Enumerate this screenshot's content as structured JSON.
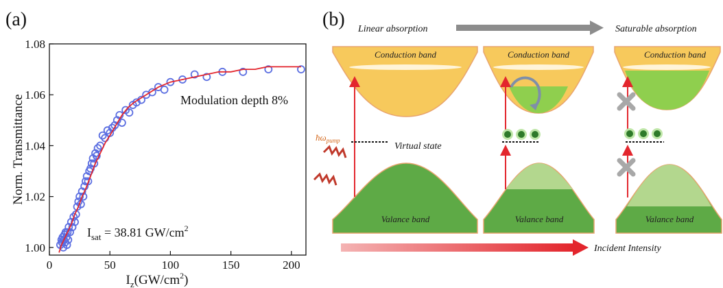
{
  "panel_a": {
    "label": "(a)",
    "ylabel": "Norm. Transmittance",
    "xlabel_main": "I",
    "xlabel_sub": "z",
    "xlabel_rest": "(GW/cm",
    "xlabel_sup": "2",
    "xlabel_end": ")",
    "annotation_modulation": "Modulation depth 8%",
    "isat_main": "I",
    "isat_sub": "sat",
    "isat_rest": " = 38.81 GW/cm",
    "isat_sup": "2"
  },
  "chart_data": {
    "type": "scatter",
    "x_ticks": [
      "0",
      "50",
      "100",
      "150",
      "200"
    ],
    "y_ticks": [
      "1.00",
      "1.02",
      "1.04",
      "1.06",
      "1.08"
    ],
    "xlim": [
      0,
      212
    ],
    "ylim": [
      0.997,
      1.08
    ],
    "colors": {
      "points": "#5b6ee1",
      "fit": "#e3262d"
    },
    "series": [
      {
        "kind": "measured",
        "x": [
          9,
          10,
          10.5,
          11,
          11.5,
          12,
          12.5,
          13,
          13.5,
          14,
          14.5,
          15,
          15.5,
          16,
          17,
          18,
          19,
          20,
          21,
          22,
          23,
          24,
          25,
          26,
          27,
          28,
          29,
          30,
          31,
          32,
          33,
          34,
          35,
          36,
          37,
          38,
          39,
          40,
          42,
          44,
          46,
          48,
          50,
          52,
          54,
          56,
          58,
          60,
          63,
          66,
          69,
          72,
          76,
          80,
          85,
          90,
          95,
          100,
          110,
          120,
          130,
          143,
          160,
          181,
          208
        ],
        "y": [
          1.001,
          1.003,
          1.002,
          1.004,
          1.0,
          1.003,
          1.005,
          1.002,
          1.006,
          1.004,
          1.001,
          1.006,
          1.003,
          1.008,
          1.006,
          1.01,
          1.008,
          1.012,
          1.01,
          1.013,
          1.016,
          1.018,
          1.02,
          1.017,
          1.022,
          1.02,
          1.024,
          1.026,
          1.028,
          1.026,
          1.03,
          1.031,
          1.033,
          1.035,
          1.033,
          1.037,
          1.036,
          1.039,
          1.04,
          1.044,
          1.043,
          1.046,
          1.045,
          1.047,
          1.048,
          1.05,
          1.052,
          1.049,
          1.054,
          1.053,
          1.056,
          1.057,
          1.058,
          1.06,
          1.061,
          1.063,
          1.062,
          1.065,
          1.066,
          1.068,
          1.067,
          1.069,
          1.069,
          1.07,
          1.07
        ]
      },
      {
        "kind": "fit",
        "x": [
          8,
          10,
          12,
          15,
          18,
          21,
          24,
          27,
          30,
          34,
          38,
          42,
          46,
          50,
          55,
          60,
          65,
          70,
          80,
          90,
          100,
          110,
          120,
          130,
          140,
          150,
          160,
          170,
          180,
          190,
          200,
          208
        ],
        "y": [
          0.998,
          1.001,
          1.003,
          1.006,
          1.009,
          1.013,
          1.016,
          1.02,
          1.023,
          1.028,
          1.033,
          1.037,
          1.041,
          1.044,
          1.048,
          1.052,
          1.055,
          1.057,
          1.06,
          1.063,
          1.065,
          1.066,
          1.067,
          1.068,
          1.069,
          1.069,
          1.07,
          1.07,
          1.071,
          1.071,
          1.071,
          1.071
        ]
      }
    ]
  },
  "panel_b": {
    "label": "(b)",
    "linear_absorption": "Linear absorption",
    "saturable_absorption": "Saturable absorption",
    "conduction_band": "Conduction band",
    "valence_band": "Valance band",
    "virtual_state": "Virtual state",
    "hw_symbol": "ħω",
    "hw_sub": "pump",
    "incident_intensity": "Incident Intensity",
    "colors": {
      "conduction": "#f7c95c",
      "valence": "#5eaa46",
      "filled": "#8fcf4e",
      "light_green": "#b3d78e",
      "arrow": "#e3262d",
      "gray_arrow": "#8c8c8c",
      "cross": "#a8a8a8"
    }
  }
}
